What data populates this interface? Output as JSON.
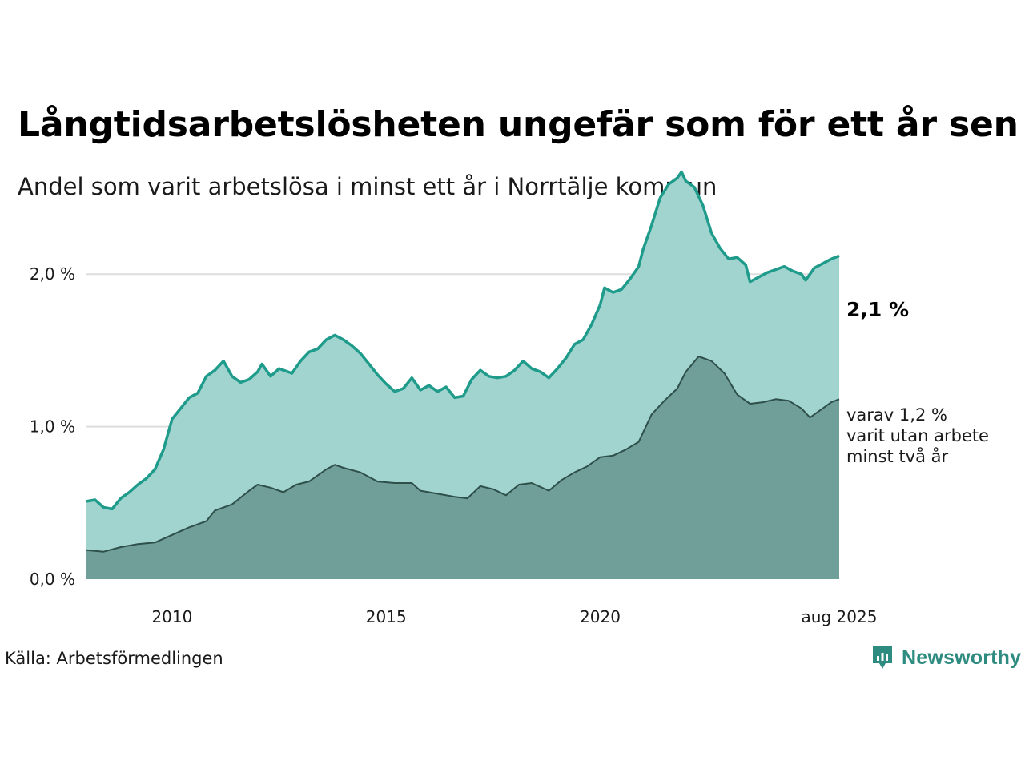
{
  "header": {
    "title": "Långtidsarbetslösheten ungefär som för ett år sen",
    "subtitle": "Andel som varit arbetslösa i minst ett år i Norrtälje kommun"
  },
  "footer": {
    "source": "Källa: Arbetsförmedlingen",
    "brand": "Newsworthy"
  },
  "colors": {
    "total_fill": "#a1d4cf",
    "total_line": "#1e9b8a",
    "two_year_fill": "#6f9f98",
    "two_year_line": "#2f4f4a",
    "grid": "#dddddd",
    "brand": "#2e8b80"
  },
  "chart_data": {
    "type": "area",
    "title": "Långtidsarbetslösheten ungefär som för ett år sen",
    "subtitle": "Andel som varit arbetslösa i minst ett år i Norrtälje kommun",
    "x_unit": "year",
    "xlim": [
      2008.0,
      2025.583
    ],
    "ylim": [
      0,
      2.5
    ],
    "y_ticks": [
      0,
      1.0,
      2.0
    ],
    "y_tick_labels": [
      "0,0 %",
      "1,0 %",
      "2,0 %"
    ],
    "x_ticks": [
      2010,
      2015,
      2020,
      2025.583
    ],
    "x_tick_labels": [
      "2010",
      "2015",
      "2020",
      "aug 2025"
    ],
    "grid": "horizontal",
    "series": [
      {
        "key": "total",
        "end_label": "2,1 %",
        "points": [
          [
            2008.0,
            0.51
          ],
          [
            2008.2,
            0.52
          ],
          [
            2008.4,
            0.47
          ],
          [
            2008.6,
            0.46
          ],
          [
            2008.8,
            0.53
          ],
          [
            2009.0,
            0.57
          ],
          [
            2009.2,
            0.62
          ],
          [
            2009.4,
            0.66
          ],
          [
            2009.6,
            0.72
          ],
          [
            2009.8,
            0.85
          ],
          [
            2010.0,
            1.05
          ],
          [
            2010.2,
            1.12
          ],
          [
            2010.4,
            1.19
          ],
          [
            2010.6,
            1.22
          ],
          [
            2010.8,
            1.33
          ],
          [
            2011.0,
            1.37
          ],
          [
            2011.2,
            1.43
          ],
          [
            2011.4,
            1.33
          ],
          [
            2011.6,
            1.29
          ],
          [
            2011.8,
            1.31
          ],
          [
            2012.0,
            1.36
          ],
          [
            2012.1,
            1.41
          ],
          [
            2012.3,
            1.33
          ],
          [
            2012.5,
            1.38
          ],
          [
            2012.8,
            1.35
          ],
          [
            2013.0,
            1.43
          ],
          [
            2013.2,
            1.49
          ],
          [
            2013.4,
            1.51
          ],
          [
            2013.6,
            1.57
          ],
          [
            2013.8,
            1.6
          ],
          [
            2014.0,
            1.57
          ],
          [
            2014.2,
            1.53
          ],
          [
            2014.4,
            1.48
          ],
          [
            2014.6,
            1.41
          ],
          [
            2014.8,
            1.34
          ],
          [
            2015.0,
            1.28
          ],
          [
            2015.2,
            1.23
          ],
          [
            2015.4,
            1.25
          ],
          [
            2015.6,
            1.32
          ],
          [
            2015.8,
            1.24
          ],
          [
            2016.0,
            1.27
          ],
          [
            2016.2,
            1.23
          ],
          [
            2016.4,
            1.26
          ],
          [
            2016.6,
            1.19
          ],
          [
            2016.8,
            1.2
          ],
          [
            2017.0,
            1.31
          ],
          [
            2017.2,
            1.37
          ],
          [
            2017.4,
            1.33
          ],
          [
            2017.6,
            1.32
          ],
          [
            2017.8,
            1.33
          ],
          [
            2018.0,
            1.37
          ],
          [
            2018.2,
            1.43
          ],
          [
            2018.4,
            1.38
          ],
          [
            2018.6,
            1.36
          ],
          [
            2018.8,
            1.32
          ],
          [
            2019.0,
            1.38
          ],
          [
            2019.2,
            1.45
          ],
          [
            2019.4,
            1.54
          ],
          [
            2019.6,
            1.57
          ],
          [
            2019.8,
            1.67
          ],
          [
            2020.0,
            1.8
          ],
          [
            2020.1,
            1.91
          ],
          [
            2020.3,
            1.88
          ],
          [
            2020.5,
            1.9
          ],
          [
            2020.7,
            1.97
          ],
          [
            2020.9,
            2.05
          ],
          [
            2021.0,
            2.16
          ],
          [
            2021.2,
            2.32
          ],
          [
            2021.4,
            2.5
          ],
          [
            2021.6,
            2.59
          ],
          [
            2021.8,
            2.63
          ],
          [
            2021.9,
            2.67
          ],
          [
            2022.0,
            2.61
          ],
          [
            2022.2,
            2.57
          ],
          [
            2022.4,
            2.45
          ],
          [
            2022.6,
            2.27
          ],
          [
            2022.8,
            2.17
          ],
          [
            2023.0,
            2.1
          ],
          [
            2023.2,
            2.11
          ],
          [
            2023.4,
            2.06
          ],
          [
            2023.5,
            1.95
          ],
          [
            2023.7,
            1.98
          ],
          [
            2023.9,
            2.01
          ],
          [
            2024.1,
            2.03
          ],
          [
            2024.3,
            2.05
          ],
          [
            2024.5,
            2.02
          ],
          [
            2024.7,
            2.0
          ],
          [
            2024.8,
            1.96
          ],
          [
            2025.0,
            2.04
          ],
          [
            2025.2,
            2.07
          ],
          [
            2025.4,
            2.1
          ],
          [
            2025.583,
            2.12
          ]
        ]
      },
      {
        "key": "two_year",
        "label_lines": [
          "varav 1,2 %",
          "varit utan arbete",
          "minst två år"
        ],
        "points": [
          [
            2008.0,
            0.19
          ],
          [
            2008.4,
            0.18
          ],
          [
            2008.8,
            0.21
          ],
          [
            2009.2,
            0.23
          ],
          [
            2009.6,
            0.24
          ],
          [
            2010.0,
            0.29
          ],
          [
            2010.4,
            0.34
          ],
          [
            2010.8,
            0.38
          ],
          [
            2011.0,
            0.45
          ],
          [
            2011.4,
            0.49
          ],
          [
            2011.8,
            0.58
          ],
          [
            2012.0,
            0.62
          ],
          [
            2012.3,
            0.6
          ],
          [
            2012.6,
            0.57
          ],
          [
            2012.9,
            0.62
          ],
          [
            2013.2,
            0.64
          ],
          [
            2013.6,
            0.72
          ],
          [
            2013.8,
            0.75
          ],
          [
            2014.0,
            0.73
          ],
          [
            2014.4,
            0.7
          ],
          [
            2014.8,
            0.64
          ],
          [
            2015.2,
            0.63
          ],
          [
            2015.6,
            0.63
          ],
          [
            2015.8,
            0.58
          ],
          [
            2016.2,
            0.56
          ],
          [
            2016.6,
            0.54
          ],
          [
            2016.9,
            0.53
          ],
          [
            2017.2,
            0.61
          ],
          [
            2017.5,
            0.59
          ],
          [
            2017.8,
            0.55
          ],
          [
            2018.1,
            0.62
          ],
          [
            2018.4,
            0.63
          ],
          [
            2018.8,
            0.58
          ],
          [
            2019.1,
            0.65
          ],
          [
            2019.4,
            0.7
          ],
          [
            2019.7,
            0.74
          ],
          [
            2020.0,
            0.8
          ],
          [
            2020.3,
            0.81
          ],
          [
            2020.6,
            0.85
          ],
          [
            2020.9,
            0.9
          ],
          [
            2021.2,
            1.08
          ],
          [
            2021.5,
            1.17
          ],
          [
            2021.8,
            1.25
          ],
          [
            2022.0,
            1.36
          ],
          [
            2022.3,
            1.46
          ],
          [
            2022.6,
            1.43
          ],
          [
            2022.9,
            1.35
          ],
          [
            2023.2,
            1.21
          ],
          [
            2023.5,
            1.15
          ],
          [
            2023.8,
            1.16
          ],
          [
            2024.1,
            1.18
          ],
          [
            2024.4,
            1.17
          ],
          [
            2024.7,
            1.12
          ],
          [
            2024.9,
            1.06
          ],
          [
            2025.1,
            1.1
          ],
          [
            2025.4,
            1.16
          ],
          [
            2025.583,
            1.18
          ]
        ]
      }
    ]
  }
}
